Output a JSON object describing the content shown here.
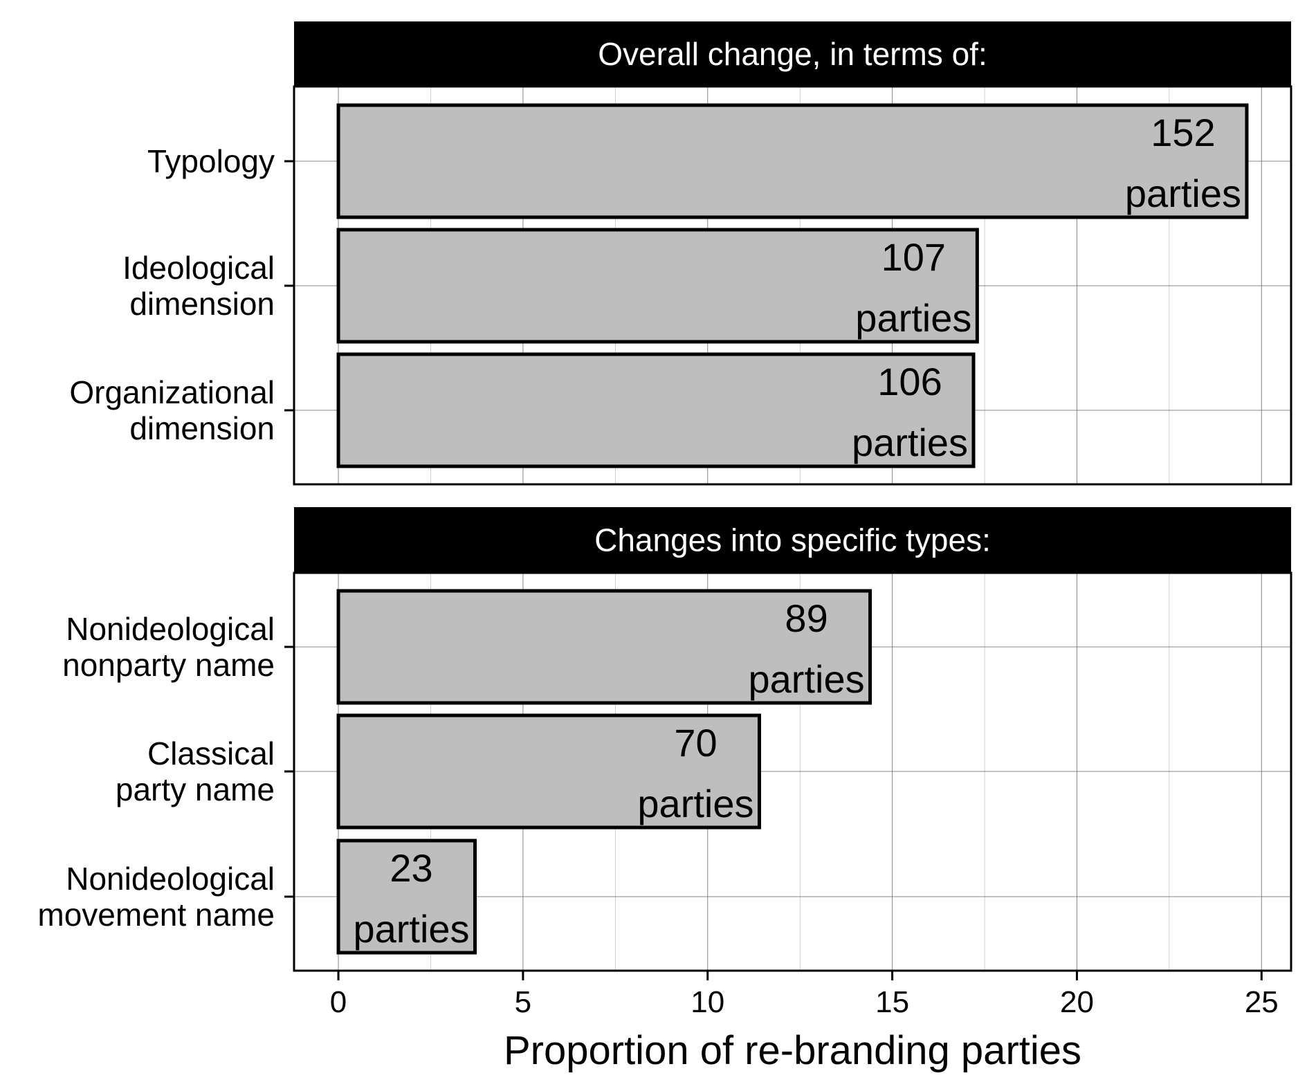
{
  "chart_data": {
    "type": "bar",
    "orientation": "horizontal",
    "xlabel": "Proportion of re-branding parties",
    "xlim": [
      -1.2,
      25.8
    ],
    "xticks": [
      0,
      5,
      10,
      15,
      20,
      25
    ],
    "grid": true,
    "panels": [
      {
        "title": "Overall change, in terms of:",
        "categories": [
          "Typology",
          "Ideological\ndimension",
          "Organizational\ndimension"
        ],
        "values": [
          24.6,
          17.3,
          17.2
        ],
        "labels": [
          [
            "152",
            "parties"
          ],
          [
            "107",
            "parties"
          ],
          [
            "106",
            "parties"
          ]
        ]
      },
      {
        "title": "Changes into specific types:",
        "categories": [
          "Nonideological\nnonparty name",
          "Classical\nparty name",
          "Nonideological\nmovement name"
        ],
        "values": [
          14.4,
          11.4,
          3.7
        ],
        "labels": [
          [
            "89",
            "parties"
          ],
          [
            "70",
            "parties"
          ],
          [
            "23",
            "parties"
          ]
        ]
      }
    ],
    "colors": {
      "bar_fill": "#bebebe",
      "bar_stroke": "#000000",
      "strip_fill": "#000000",
      "strip_text": "#ffffff",
      "grid": "#666666"
    }
  }
}
